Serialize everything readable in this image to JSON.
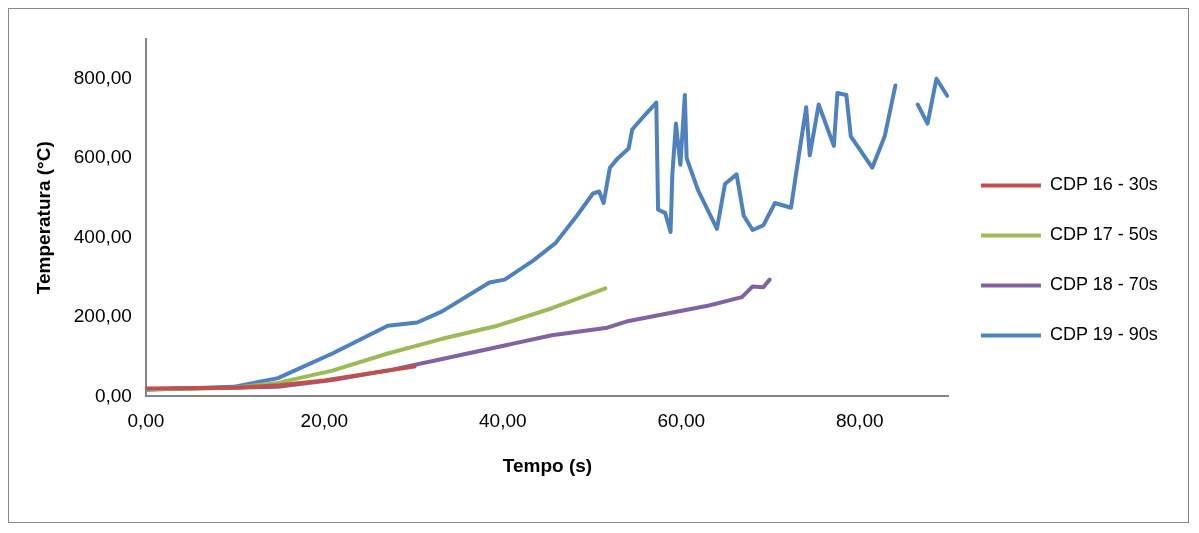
{
  "chart_data": {
    "type": "line",
    "xlabel": "Tempo (s)",
    "ylabel": "Temperatura (°C)",
    "xlim": [
      0,
      90
    ],
    "ylim": [
      0,
      900
    ],
    "xticks": [
      {
        "value": 0,
        "label": "0,00"
      },
      {
        "value": 20,
        "label": "20,00"
      },
      {
        "value": 40,
        "label": "40,00"
      },
      {
        "value": 60,
        "label": "60,00"
      },
      {
        "value": 80,
        "label": "80,00"
      }
    ],
    "yticks": [
      {
        "value": 0,
        "label": "0,00"
      },
      {
        "value": 200,
        "label": "200,00"
      },
      {
        "value": 400,
        "label": "400,00"
      },
      {
        "value": 600,
        "label": "600,00"
      },
      {
        "value": 800,
        "label": "800,00"
      }
    ],
    "grid": false,
    "legend": "right",
    "marker": "none",
    "line_style": "solid",
    "series": [
      {
        "name": "CDP 16 - 30s",
        "color": "#c0504d",
        "x": [
          0,
          10,
          15,
          20,
          25,
          30.1
        ],
        "values": [
          20,
          22,
          28,
          40,
          58,
          75
        ]
      },
      {
        "name": "CDP 17 - 50s",
        "color": "#9bbb59",
        "x": [
          0,
          10,
          14.8,
          20.9,
          27.1,
          33.2,
          39.4,
          45.5,
          51.5
        ],
        "values": [
          18,
          22,
          34,
          65,
          108,
          145,
          178,
          222,
          272
        ]
      },
      {
        "name": "CDP 18 - 70s",
        "color": "#8064a2",
        "x": [
          0,
          14.8,
          20.9,
          27.1,
          33.2,
          45.5,
          51.7,
          54.1,
          63.1,
          66.8,
          68,
          69.2,
          69.9
        ],
        "values": [
          18,
          24,
          41,
          65,
          94,
          154,
          173,
          190,
          229,
          250,
          277,
          275,
          294
        ]
      },
      {
        "name": "CDP 19 - 90s",
        "color": "#4f81bd",
        "x": [
          0,
          9.8,
          14.8,
          20.9,
          27.1,
          30.4,
          33.2,
          38.5,
          40.2,
          43.4,
          45.9,
          48.3,
          50.1,
          50.8,
          51.3,
          52,
          52.9,
          54.1,
          54.5,
          55.7,
          57.2,
          57.4,
          58.2,
          58.8,
          59,
          59.4,
          59.9,
          60.4,
          60.6,
          61.9,
          64,
          64.9,
          66.2,
          67,
          68,
          69.2,
          70.5,
          72.3,
          72.9,
          74,
          74.4,
          75.4,
          77.1,
          77.5,
          78.5,
          79,
          81.4,
          82.8,
          84,
          84.5,
          86.3,
          86.5,
          87.6,
          88.6,
          89.8
        ],
        "values": [
          17,
          24,
          46,
          108,
          178,
          186,
          214,
          287,
          294,
          342,
          386,
          455,
          511,
          516,
          487,
          576,
          600,
          624,
          672,
          703,
          740,
          470,
          462,
          414,
          559,
          687,
          583,
          759,
          600,
          518,
          422,
          535,
          559,
          455,
          419,
          431,
          487,
          475,
          566,
          728,
          607,
          735,
          631,
          764,
          759,
          655,
          576,
          655,
          783,
          null,
          null,
          735,
          687,
          800,
          757
        ]
      }
    ]
  }
}
